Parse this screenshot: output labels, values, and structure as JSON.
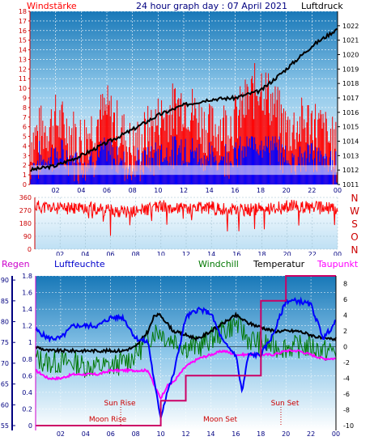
{
  "header": {
    "left": "Windstärke",
    "center": "24 hour graph day : 07 April 2021",
    "right": "Luftdruck"
  },
  "colors": {
    "red": "#ff0000",
    "blue": "#0000ff",
    "green": "#007700",
    "black": "#000000",
    "magenta": "#ff00ff",
    "navy": "#000080",
    "grid": "#ffffff"
  },
  "wind_panel": {
    "left_axis_ticks": [
      "0",
      "1",
      "2",
      "3",
      "4",
      "5",
      "6",
      "7",
      "8",
      "9",
      "10",
      "11",
      "12",
      "13",
      "14",
      "15",
      "16",
      "17",
      "18"
    ],
    "right_axis_ticks": [
      "1011",
      "1012",
      "1013",
      "1014",
      "1015",
      "1016",
      "1017",
      "1018",
      "1019",
      "1020",
      "1021",
      "1022"
    ],
    "x_ticks": [
      "02",
      "04",
      "06",
      "08",
      "10",
      "12",
      "14",
      "16",
      "18",
      "20",
      "22",
      "00"
    ]
  },
  "dir_panel": {
    "left_axis_ticks": [
      "0",
      "90",
      "180",
      "270",
      "360"
    ],
    "compass": [
      "N",
      "W",
      "S",
      "O",
      "N"
    ],
    "x_ticks": [
      "02",
      "04",
      "06",
      "08",
      "10",
      "12",
      "14",
      "16",
      "18",
      "20",
      "22",
      "00"
    ]
  },
  "bottom_panel": {
    "legend": {
      "regen": "Regen",
      "feuchte": "Luftfeuchte",
      "windchill": "Windchill",
      "temperatur": "Temperatur",
      "taupunkt": "Taupunkt"
    },
    "humidity_ticks": [
      "55",
      "60",
      "65",
      "70",
      "75",
      "80",
      "85",
      "90"
    ],
    "rain_ticks": [
      "0",
      "0.2",
      "0.4",
      "0.6",
      "0.8",
      "1",
      "1.2",
      "1.4",
      "1.6",
      "1.8"
    ],
    "temp_ticks": [
      "-10",
      "-8",
      "-6",
      "-4",
      "-2",
      "0",
      "2",
      "4",
      "6",
      "8"
    ],
    "x_ticks": [
      "02",
      "04",
      "06",
      "08",
      "10",
      "12",
      "14",
      "16",
      "18",
      "20",
      "22",
      "00"
    ],
    "annotations": {
      "sun_rise": "Sun Rise",
      "moon_rise": "Moon Rise",
      "moon_set": "Moon Set",
      "sun_set": "Sun Set"
    }
  },
  "chart_data": [
    {
      "type": "bar",
      "title": "24 hour graph day : 07 April 2021",
      "ylabel": "Windstärke",
      "y2label": "Luftdruck",
      "ylim": [
        0,
        18
      ],
      "y2lim": [
        1011,
        1023
      ],
      "x_hours": [
        0,
        2,
        4,
        6,
        8,
        10,
        12,
        14,
        16,
        18,
        20,
        22,
        24
      ],
      "series": [
        {
          "name": "Windstärke",
          "values": [
            4,
            6,
            4,
            7,
            3,
            6,
            8,
            5,
            6,
            10,
            5,
            6,
            3
          ]
        },
        {
          "name": "Luftdruck",
          "values": [
            1012.0,
            1012.3,
            1013.0,
            1013.9,
            1014.8,
            1015.8,
            1016.5,
            1016.9,
            1017.0,
            1017.5,
            1019.0,
            1020.6,
            1021.8
          ]
        }
      ]
    },
    {
      "type": "line",
      "ylabel": "Windrichtung",
      "ylim": [
        0,
        360
      ],
      "x_hours": [
        0,
        2,
        4,
        6,
        8,
        10,
        12,
        14,
        16,
        18,
        20,
        22,
        24
      ],
      "values": [
        300,
        280,
        290,
        270,
        260,
        300,
        280,
        290,
        270,
        280,
        300,
        290,
        280
      ]
    },
    {
      "type": "line",
      "ylim_humidity": [
        55,
        91
      ],
      "ylim_rain": [
        0,
        1.8
      ],
      "ylim_temperature": [
        -10,
        9
      ],
      "x_hours": [
        0,
        1,
        2,
        3,
        4,
        5,
        6,
        7,
        8,
        9,
        9.5,
        10,
        10.5,
        11,
        12,
        13,
        14,
        15,
        16,
        16.5,
        17,
        18,
        19,
        20,
        21,
        22,
        23,
        24
      ],
      "series": [
        {
          "name": "Luftfeuchte",
          "values": [
            78,
            76,
            76,
            79,
            79,
            79,
            81,
            81,
            76,
            75,
            65,
            57,
            63,
            67,
            81,
            83,
            82,
            75,
            72,
            63,
            72,
            72,
            77,
            85,
            85,
            84,
            76,
            80
          ]
        },
        {
          "name": "Temperatur",
          "values": [
            0,
            -0.5,
            -0.5,
            -0.5,
            -0.5,
            -0.5,
            -0.5,
            -0.5,
            0,
            2,
            4,
            4,
            3,
            2,
            1.5,
            1,
            2,
            3,
            4,
            3.5,
            3,
            2.5,
            2,
            2,
            2,
            1.5,
            1,
            1
          ]
        },
        {
          "name": "Windchill",
          "values": [
            -1.5,
            -2,
            -2,
            -2,
            -2.5,
            -2.5,
            -2.5,
            -2,
            -1,
            1,
            2,
            2,
            1,
            1,
            0,
            0,
            1,
            2,
            3,
            2,
            1,
            0.5,
            0,
            0,
            0,
            0,
            -0.5,
            -0.5
          ]
        },
        {
          "name": "Taupunkt",
          "values": [
            -3,
            -4,
            -4,
            -3.5,
            -3.5,
            -3.5,
            -3,
            -3,
            -3,
            -3,
            -5,
            -6.5,
            -5,
            -4.5,
            -2.5,
            -1.5,
            -1,
            -0.5,
            -1,
            -1,
            -1,
            -1,
            -1,
            -0.5,
            -0.5,
            -1,
            -1.5,
            -1.5
          ]
        },
        {
          "name": "Regen",
          "values": [
            0,
            0,
            0,
            0,
            0,
            0,
            0,
            0,
            0,
            0,
            0,
            0.3,
            0.3,
            0.3,
            0.6,
            0.6,
            0.6,
            0.6,
            0.6,
            0.6,
            0.6,
            1.5,
            1.5,
            1.8,
            1.8,
            1.8,
            1.8,
            1.8
          ]
        }
      ]
    }
  ]
}
